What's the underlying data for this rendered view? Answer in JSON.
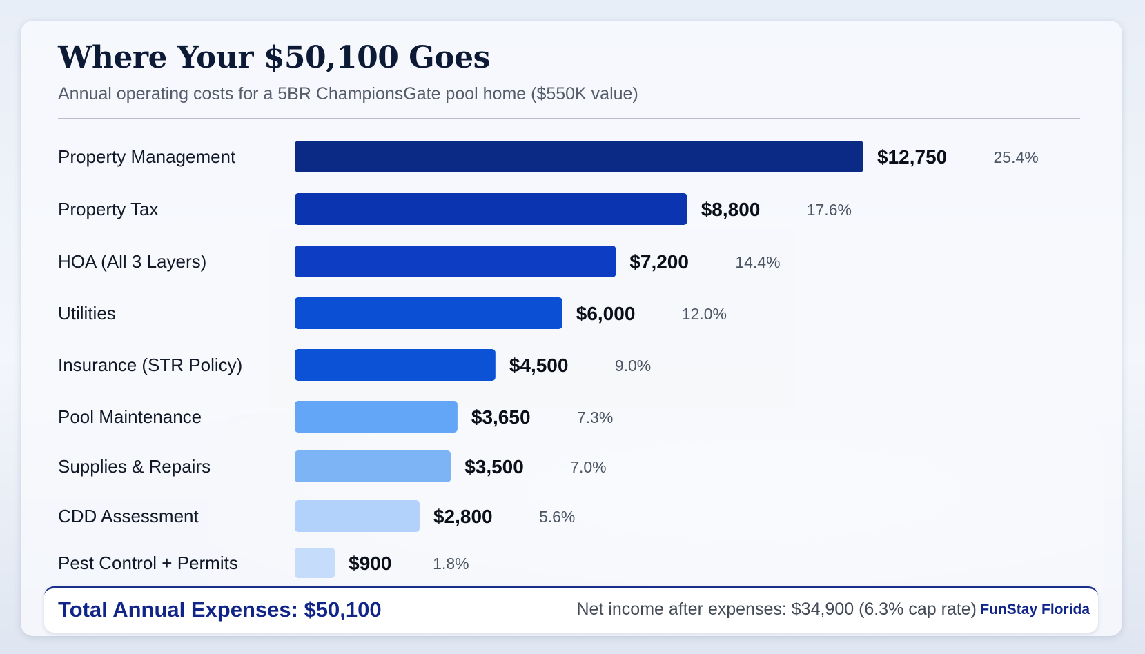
{
  "title": "Where Your $50,100 Goes",
  "subtitle": "Annual operating costs for a 5BR ChampionsGate pool home ($550K value)",
  "footer": {
    "total_label": "Total Annual Expenses: $50,100",
    "net_income": "Net income after expenses: $34,900 (6.3% cap rate)",
    "brand": "FunStay Florida"
  },
  "chart_data": {
    "type": "bar",
    "orientation": "horizontal",
    "categories": [
      "Property Management",
      "Property Tax",
      "HOA (All 3 Layers)",
      "Utilities",
      "Insurance (STR Policy)",
      "Pool Maintenance",
      "Supplies & Repairs",
      "CDD Assessment",
      "Pest Control + Permits"
    ],
    "values": [
      12750,
      8800,
      7200,
      6000,
      4500,
      3650,
      3500,
      2800,
      900
    ],
    "value_labels": [
      "$12,750",
      "$8,800",
      "$7,200",
      "$6,000",
      "$4,500",
      "$3,650",
      "$3,500",
      "$2,800",
      "$900"
    ],
    "percent_labels": [
      "25.4%",
      "17.6%",
      "14.4%",
      "12.0%",
      "9.0%",
      "7.3%",
      "7.0%",
      "5.6%",
      "1.8%"
    ],
    "colors": [
      "#0a2a86",
      "#0b34b0",
      "#0c3dc2",
      "#0b4fd4",
      "#0c52d6",
      "#63a6f7",
      "#7db4f6",
      "#b3d2fb",
      "#c6dcfb"
    ],
    "xlim": [
      0,
      12750
    ],
    "grid": false,
    "legend": "none"
  }
}
